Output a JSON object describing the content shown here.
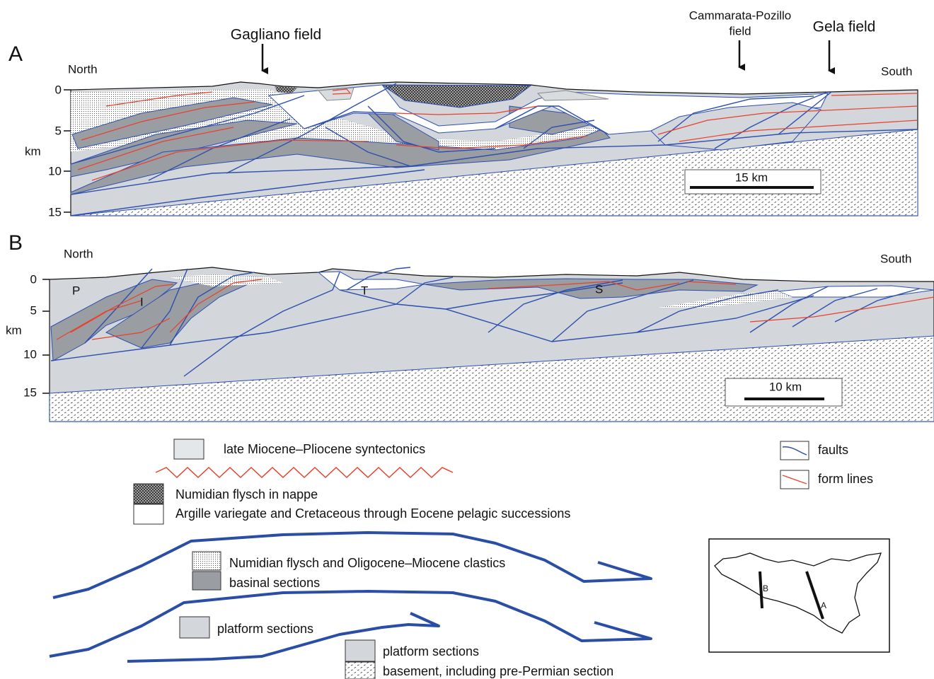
{
  "sections": [
    {
      "letter": "A",
      "north": "North",
      "south": "South",
      "depth_unit": "km",
      "depth_ticks": [
        0,
        5,
        10,
        15
      ],
      "scale_bar": "15 km",
      "fields": [
        {
          "lines": [
            "Gagliano field"
          ]
        },
        {
          "lines": [
            "Cammarata-Pozillo",
            "field"
          ]
        },
        {
          "lines": [
            "Gela field"
          ]
        }
      ]
    },
    {
      "letter": "B",
      "north": "North",
      "south": "South",
      "depth_unit": "km",
      "depth_ticks": [
        0,
        5,
        10,
        15
      ],
      "scale_bar": "10 km",
      "units": [
        "P",
        "I",
        "T",
        "S"
      ]
    }
  ],
  "legend": {
    "syntectonics": "late Miocene–Pliocene syntectonics",
    "nappe": "Numidian flysch in nappe",
    "argille": "Argille variegate and Cretaceous through Eocene pelagic successions",
    "numidian": "Numidian flysch and Oligocene–Miocene clastics",
    "basinal": "basinal sections",
    "platform_upper": "platform sections",
    "platform_lower": "platform sections",
    "basement": "basement, including pre-Permian section",
    "faults": "faults",
    "form_lines": "form lines"
  },
  "map": {
    "labels": [
      "B",
      "A"
    ]
  }
}
